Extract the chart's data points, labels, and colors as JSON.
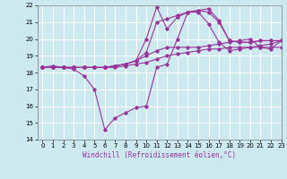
{
  "title": "",
  "xlabel": "Windchill (Refroidissement éolien,°C)",
  "xlim": [
    -0.5,
    23
  ],
  "ylim": [
    14,
    22
  ],
  "xticks": [
    0,
    1,
    2,
    3,
    4,
    5,
    6,
    7,
    8,
    9,
    10,
    11,
    12,
    13,
    14,
    15,
    16,
    17,
    18,
    19,
    20,
    21,
    22,
    23
  ],
  "yticks": [
    14,
    15,
    16,
    17,
    18,
    19,
    20,
    21,
    22
  ],
  "bg_color": "#cce9f0",
  "line_color": "#993399",
  "grid_color": "#ffffff",
  "lines": [
    {
      "x": [
        0,
        1,
        2,
        3,
        4,
        5,
        6,
        7,
        8,
        9,
        10,
        11,
        12,
        13,
        14,
        15,
        16,
        17,
        18,
        19,
        20,
        21,
        22,
        23
      ],
      "y": [
        18.3,
        18.4,
        18.3,
        18.2,
        17.8,
        17.0,
        14.6,
        15.3,
        15.6,
        15.9,
        16.0,
        18.3,
        18.5,
        20.0,
        21.6,
        21.6,
        20.9,
        19.8,
        19.3,
        19.4,
        19.5,
        19.6,
        19.7,
        19.9
      ]
    },
    {
      "x": [
        0,
        1,
        2,
        3,
        4,
        5,
        6,
        7,
        8,
        9,
        10,
        11,
        12,
        13,
        14,
        15,
        16,
        17,
        18,
        19,
        20,
        21,
        22,
        23
      ],
      "y": [
        18.3,
        18.3,
        18.3,
        18.3,
        18.3,
        18.3,
        18.3,
        18.4,
        18.5,
        18.7,
        20.0,
        21.9,
        20.6,
        21.3,
        21.6,
        21.7,
        21.8,
        21.1,
        19.9,
        19.8,
        19.8,
        19.9,
        19.9,
        19.9
      ]
    },
    {
      "x": [
        0,
        1,
        2,
        3,
        4,
        5,
        6,
        7,
        8,
        9,
        10,
        11,
        12,
        13,
        14,
        15,
        16,
        17,
        18,
        19,
        20,
        21,
        22,
        23
      ],
      "y": [
        18.3,
        18.3,
        18.3,
        18.3,
        18.3,
        18.3,
        18.3,
        18.4,
        18.5,
        18.7,
        19.2,
        21.0,
        21.2,
        21.4,
        21.6,
        21.7,
        21.6,
        21.0,
        19.9,
        19.8,
        19.8,
        19.9,
        19.9,
        19.9
      ]
    },
    {
      "x": [
        0,
        1,
        2,
        3,
        4,
        5,
        6,
        7,
        8,
        9,
        10,
        11,
        12,
        13,
        14,
        15,
        16,
        17,
        18,
        19,
        20,
        21,
        22,
        23
      ],
      "y": [
        18.3,
        18.3,
        18.3,
        18.3,
        18.3,
        18.3,
        18.3,
        18.4,
        18.5,
        18.7,
        19.0,
        19.3,
        19.5,
        19.5,
        19.5,
        19.5,
        19.6,
        19.7,
        19.8,
        19.9,
        20.0,
        19.5,
        19.4,
        19.9
      ]
    },
    {
      "x": [
        0,
        1,
        2,
        3,
        4,
        5,
        6,
        7,
        8,
        9,
        10,
        11,
        12,
        13,
        14,
        15,
        16,
        17,
        18,
        19,
        20,
        21,
        22,
        23
      ],
      "y": [
        18.3,
        18.3,
        18.3,
        18.3,
        18.3,
        18.3,
        18.3,
        18.3,
        18.4,
        18.5,
        18.6,
        18.8,
        19.0,
        19.1,
        19.2,
        19.3,
        19.4,
        19.4,
        19.5,
        19.5,
        19.5,
        19.5,
        19.5,
        19.5
      ]
    }
  ]
}
